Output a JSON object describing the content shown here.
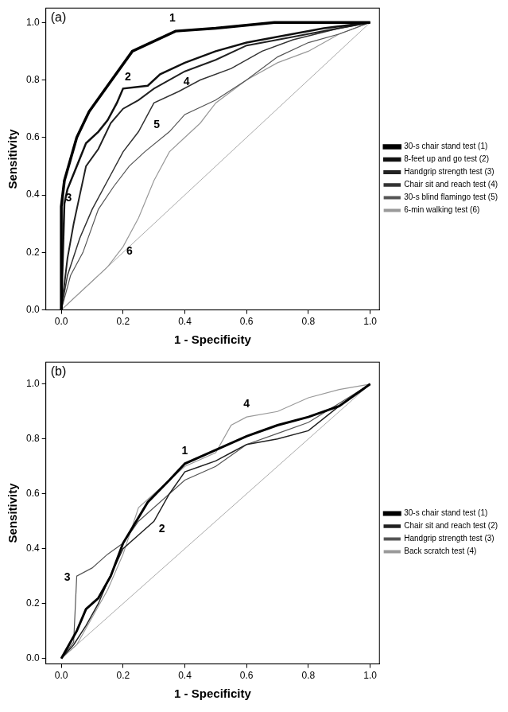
{
  "chart_data": [
    {
      "type": "line",
      "annotation": "(a)",
      "x_label": "1 - Specificity",
      "y_label": "Sensitivity",
      "xlim": [
        -0.05,
        1.03
      ],
      "ylim": [
        0,
        1.05
      ],
      "xticks": [
        {
          "value": 0,
          "label": "0.0"
        },
        {
          "value": 0.2,
          "label": "0.2"
        },
        {
          "value": 0.4,
          "label": "0.4"
        },
        {
          "value": 0.6,
          "label": "0.6"
        },
        {
          "value": 0.8,
          "label": "0.8"
        },
        {
          "value": 1,
          "label": "1.0"
        }
      ],
      "yticks": [
        {
          "value": 0,
          "label": "0.0"
        },
        {
          "value": 0.2,
          "label": "0.2"
        },
        {
          "value": 0.4,
          "label": "0.4"
        },
        {
          "value": 0.6,
          "label": "0.6"
        },
        {
          "value": 0.8,
          "label": "0.8"
        },
        {
          "value": 1,
          "label": "1.0"
        }
      ],
      "grid": false,
      "legend": "right",
      "series": [
        {
          "name": "30-s chair stand test (1)",
          "annotation": "1",
          "color": "#000000",
          "x": [
            0,
            0,
            0.01,
            0.05,
            0.09,
            0.15,
            0.23,
            0.37,
            0.5,
            0.69,
            1
          ],
          "values": [
            0,
            0.36,
            0.45,
            0.6,
            0.69,
            0.78,
            0.9,
            0.97,
            0.98,
            1,
            1
          ]
        },
        {
          "name": "8-feet up and go test (2)",
          "annotation": "2",
          "color": "#111111",
          "x": [
            0,
            0.01,
            0.02,
            0.05,
            0.08,
            0.12,
            0.15,
            0.18,
            0.2,
            0.28,
            0.32,
            0.4,
            0.5,
            0.6,
            0.7,
            0.85,
            1
          ],
          "values": [
            0,
            0.37,
            0.42,
            0.5,
            0.58,
            0.62,
            0.66,
            0.72,
            0.77,
            0.78,
            0.82,
            0.86,
            0.9,
            0.93,
            0.95,
            0.98,
            1
          ]
        },
        {
          "name": "Handgrip strength test (3)",
          "annotation": "3",
          "color": "#222222",
          "x": [
            0,
            0.02,
            0.04,
            0.06,
            0.08,
            0.12,
            0.16,
            0.2,
            0.25,
            0.3,
            0.4,
            0.5,
            0.6,
            0.7,
            0.85,
            1
          ],
          "values": [
            0,
            0.18,
            0.3,
            0.4,
            0.5,
            0.56,
            0.65,
            0.7,
            0.73,
            0.77,
            0.83,
            0.87,
            0.92,
            0.94,
            0.97,
            1
          ]
        },
        {
          "name": "Chair sit and reach test (4)",
          "annotation": "4",
          "color": "#333333",
          "x": [
            0,
            0.02,
            0.06,
            0.1,
            0.15,
            0.2,
            0.25,
            0.3,
            0.38,
            0.45,
            0.55,
            0.65,
            0.75,
            0.9,
            1
          ],
          "values": [
            0,
            0.12,
            0.25,
            0.35,
            0.45,
            0.55,
            0.62,
            0.72,
            0.76,
            0.8,
            0.84,
            0.9,
            0.94,
            0.98,
            1
          ]
        },
        {
          "name": "30-s blind flamingo test (5)",
          "annotation": "5",
          "color": "#555555",
          "x": [
            0,
            0.03,
            0.07,
            0.12,
            0.17,
            0.22,
            0.27,
            0.35,
            0.4,
            0.5,
            0.6,
            0.7,
            0.8,
            0.9,
            1
          ],
          "values": [
            0,
            0.12,
            0.2,
            0.35,
            0.43,
            0.5,
            0.55,
            0.62,
            0.68,
            0.73,
            0.8,
            0.88,
            0.93,
            0.96,
            1
          ]
        },
        {
          "name": "6-min walking test (6)",
          "annotation": "6",
          "color": "#999999",
          "x": [
            0,
            0.05,
            0.1,
            0.15,
            0.2,
            0.25,
            0.3,
            0.35,
            0.4,
            0.45,
            0.5,
            0.6,
            0.7,
            0.8,
            0.9,
            1
          ],
          "values": [
            0,
            0.05,
            0.1,
            0.15,
            0.22,
            0.32,
            0.45,
            0.55,
            0.6,
            0.65,
            0.72,
            0.8,
            0.86,
            0.9,
            0.96,
            1
          ]
        },
        {
          "name": null,
          "color": "#aaaaaa",
          "x": [
            0,
            1
          ],
          "values": [
            0,
            1
          ]
        }
      ]
    },
    {
      "type": "line",
      "annotation": "(b)",
      "x_label": "1 - Specificity",
      "y_label": "Sensitivity",
      "xlim": [
        -0.05,
        1.03
      ],
      "ylim": [
        -0.02,
        1.08
      ],
      "xticks": [
        {
          "value": 0,
          "label": "0.0"
        },
        {
          "value": 0.2,
          "label": "0.2"
        },
        {
          "value": 0.4,
          "label": "0.4"
        },
        {
          "value": 0.6,
          "label": "0.6"
        },
        {
          "value": 0.8,
          "label": "0.8"
        },
        {
          "value": 1,
          "label": "1.0"
        }
      ],
      "yticks": [
        {
          "value": 0,
          "label": "0.0"
        },
        {
          "value": 0.2,
          "label": "0.2"
        },
        {
          "value": 0.4,
          "label": "0.4"
        },
        {
          "value": 0.6,
          "label": "0.6"
        },
        {
          "value": 0.8,
          "label": "0.8"
        },
        {
          "value": 1,
          "label": "1.0"
        }
      ],
      "grid": false,
      "legend": "right",
      "series": [
        {
          "name": "30-s chair stand test (1)",
          "annotation": "1",
          "color": "#000000",
          "x": [
            0,
            0.05,
            0.08,
            0.12,
            0.16,
            0.2,
            0.28,
            0.35,
            0.4,
            0.5,
            0.6,
            0.7,
            0.8,
            0.9,
            1
          ],
          "values": [
            0,
            0.1,
            0.18,
            0.22,
            0.3,
            0.42,
            0.57,
            0.65,
            0.71,
            0.76,
            0.81,
            0.85,
            0.88,
            0.92,
            1
          ]
        },
        {
          "name": "Chair sit and reach test (2)",
          "annotation": "2",
          "color": "#222222",
          "x": [
            0,
            0.04,
            0.08,
            0.12,
            0.15,
            0.2,
            0.25,
            0.3,
            0.35,
            0.4,
            0.45,
            0.5,
            0.55,
            0.6,
            0.7,
            0.8,
            0.9,
            1
          ],
          "values": [
            0,
            0.05,
            0.12,
            0.2,
            0.28,
            0.4,
            0.45,
            0.5,
            0.6,
            0.68,
            0.7,
            0.72,
            0.75,
            0.78,
            0.8,
            0.83,
            0.92,
            1
          ]
        },
        {
          "name": "Handgrip strength test (3)",
          "annotation": "3",
          "color": "#555555",
          "x": [
            0,
            0.04,
            0.05,
            0.1,
            0.15,
            0.2,
            0.25,
            0.3,
            0.35,
            0.4,
            0.5,
            0.6,
            0.7,
            0.8,
            0.9,
            1
          ],
          "values": [
            0,
            0.06,
            0.3,
            0.33,
            0.38,
            0.42,
            0.5,
            0.55,
            0.6,
            0.65,
            0.7,
            0.78,
            0.82,
            0.86,
            0.93,
            1
          ]
        },
        {
          "name": "Back scratch test (4)",
          "annotation": "4",
          "color": "#999999",
          "x": [
            0,
            0.05,
            0.1,
            0.15,
            0.2,
            0.25,
            0.3,
            0.35,
            0.4,
            0.5,
            0.55,
            0.6,
            0.7,
            0.8,
            0.9,
            1
          ],
          "values": [
            0,
            0.05,
            0.15,
            0.25,
            0.38,
            0.55,
            0.6,
            0.65,
            0.7,
            0.75,
            0.85,
            0.88,
            0.9,
            0.95,
            0.98,
            1
          ]
        },
        {
          "name": null,
          "color": "#aaaaaa",
          "x": [
            0,
            1
          ],
          "values": [
            0,
            1
          ]
        }
      ]
    }
  ]
}
